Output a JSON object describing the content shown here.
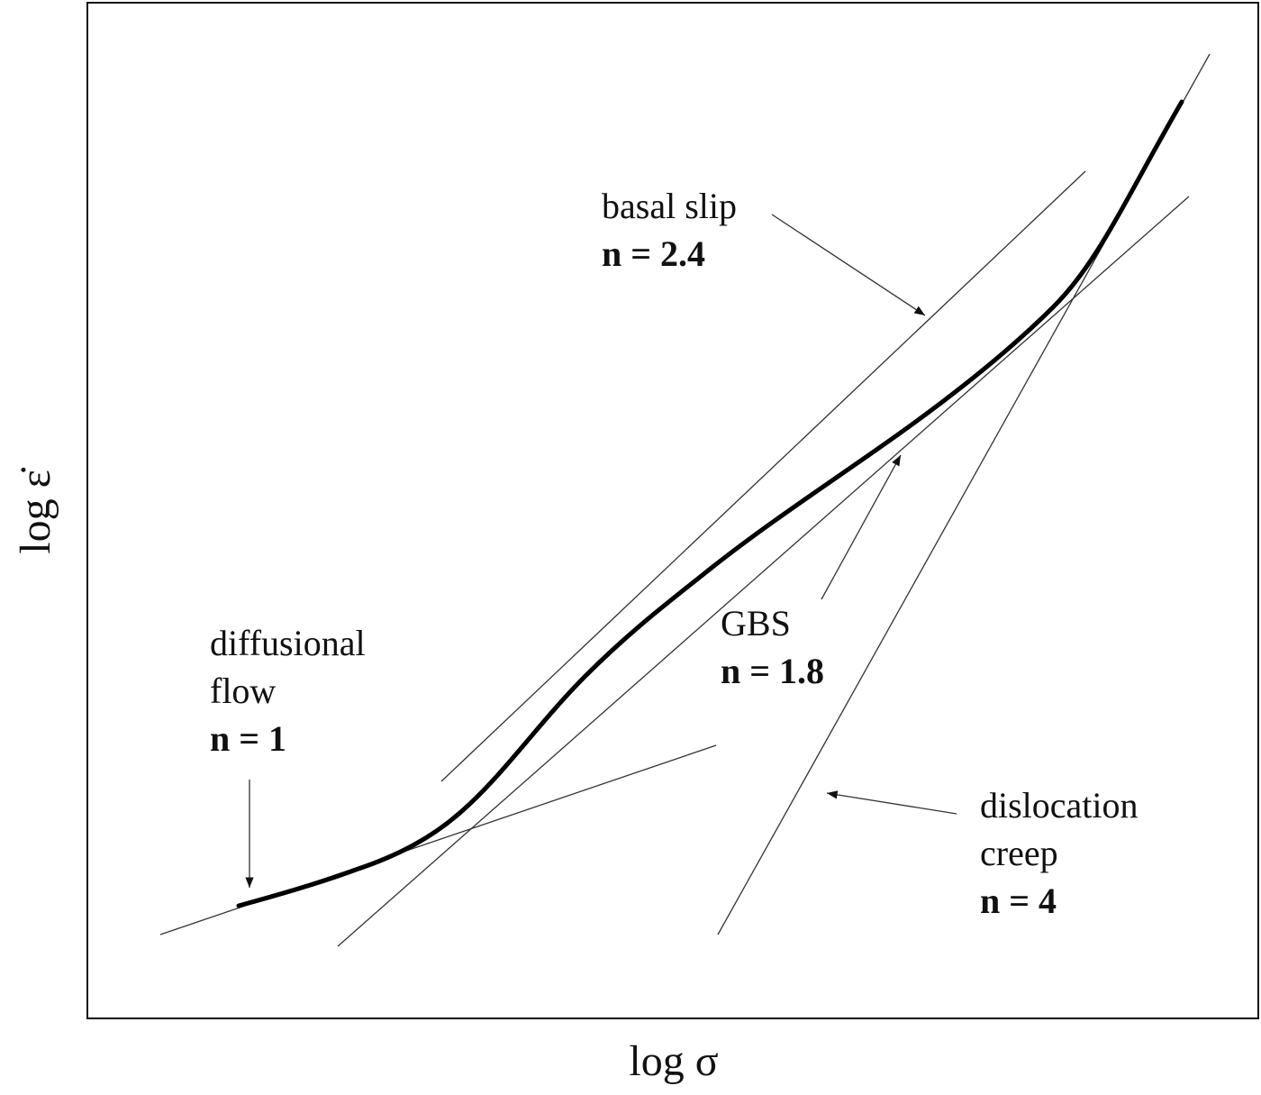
{
  "axes": {
    "x_label": "log σ",
    "y_label": "log ε̇"
  },
  "annotations": {
    "basal_slip": {
      "name": "basal slip",
      "n": "n = 2.4"
    },
    "gbs": {
      "name": "GBS",
      "n": "n = 1.8"
    },
    "diffusional": {
      "name_line1": "diffusional",
      "name_line2": "flow",
      "n": "n = 1"
    },
    "dislocation": {
      "name_line1": "dislocation",
      "name_line2": "creep",
      "n": "n = 4"
    }
  }
}
